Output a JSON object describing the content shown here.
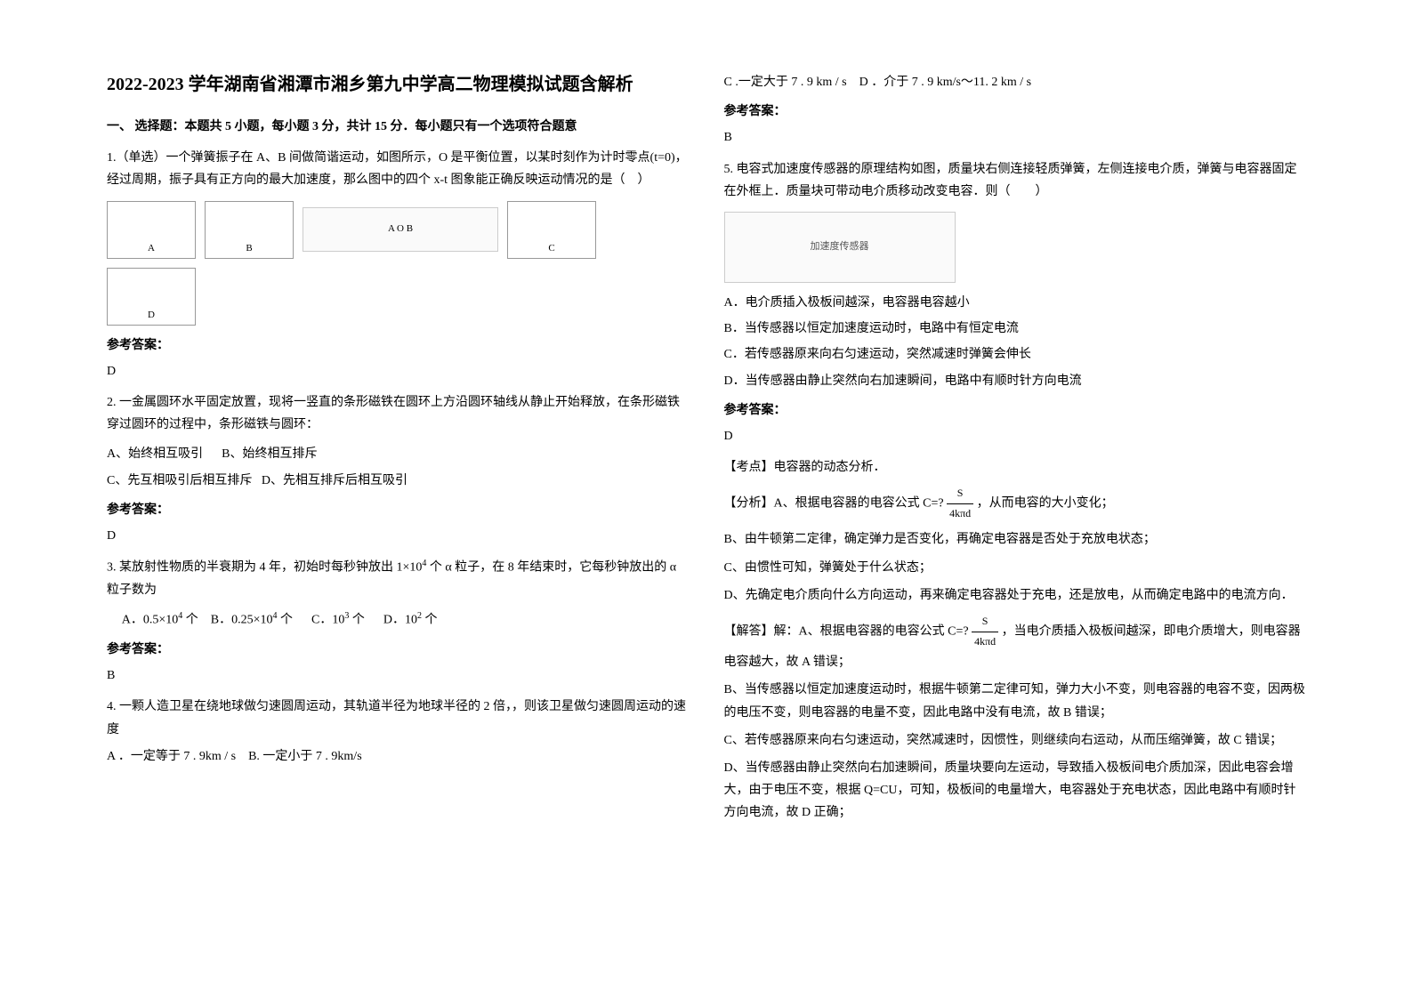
{
  "title": "2022-2023 学年湖南省湘潭市湘乡第九中学高二物理模拟试题含解析",
  "section1_heading": "一、 选择题：本题共 5 小题，每小题 3 分，共计 15 分．每小题只有一个选项符合题意",
  "q1": {
    "text": "1.（单选）一个弹簧振子在 A、B 间做简谐运动，如图所示，O 是平衡位置，以某时刻作为计时零点(t=0)，经过周期，振子具有正方向的最大加速度，那么图中的四个 x-t 图象能正确反映运动情况的是（　）",
    "graph_labels": [
      "A",
      "B",
      "C",
      "D"
    ],
    "spring_labels": "A   O   B",
    "answer_label": "参考答案：",
    "answer": "D"
  },
  "q2": {
    "text": "2. 一金属圆环水平固定放置，现将一竖直的条形磁铁在圆环上方沿圆环轴线从静止开始释放，在条形磁铁穿过圆环的过程中，条形磁铁与圆环：",
    "optA": "A、始终相互吸引",
    "optB": "B、始终相互排斥",
    "optC": "C、先互相吸引后相互排斥",
    "optD": "D、先相互排斥后相互吸引",
    "answer_label": "参考答案：",
    "answer": "D"
  },
  "q3": {
    "text_part1": "3. 某放射性物质的半衰期为 4 年，初始时每秒钟放出 1×10",
    "text_exp1": "4",
    "text_part2": " 个 α 粒子，在 8 年结束时，它每秒钟放出的 α 粒子数为",
    "optA_pre": "A．0.5×10",
    "optA_exp": "4",
    "optA_post": " 个",
    "optB_pre": "B．0.25×10",
    "optB_exp": "4",
    "optB_post": " 个",
    "optC_pre": "C．10",
    "optC_exp": "3",
    "optC_post": " 个",
    "optD_pre": "D．10",
    "optD_exp": "2",
    "optD_post": " 个",
    "answer_label": "参考答案：",
    "answer": "B"
  },
  "q4": {
    "text": "4. 一颗人造卫星在绕地球做匀速圆周运动，其轨道半径为地球半径的 2 倍，，则该卫星做匀速圆周运动的速度",
    "optA": "A ．一定等于 7 . 9km / s",
    "optB": "B. 一定小于 7 . 9km/s",
    "optC": "C .一定大于 7 . 9 km / s",
    "optD": "D ．介于 7 . 9 km/s～11. 2 km / s",
    "answer_label": "参考答案：",
    "answer": "B"
  },
  "q5": {
    "text": "5. 电容式加速度传感器的原理结构如图，质量块右侧连接轻质弹簧，左侧连接电介质，弹簧与电容器固定在外框上．质量块可带动电介质移动改变电容．则（　　）",
    "diagram_label": "加速度传感器",
    "optA": "A．电介质插入极板间越深，电容器电容越小",
    "optB": "B．当传感器以恒定加速度运动时，电路中有恒定电流",
    "optC": "C．若传感器原来向右匀速运动，突然减速时弹簧会伸长",
    "optD": "D．当传感器由静止突然向右加速瞬间，电路中有顺时针方向电流",
    "answer_label": "参考答案：",
    "answer": "D",
    "analysis_title": "【考点】电容器的动态分析．",
    "analysis_intro_pre": "【分析】A、根据电容器的电容公式 C=?",
    "frac_num": "S",
    "frac_den": "4kπd",
    "analysis_intro_post": " ，从而电容的大小变化；",
    "analysis_B": "B、由牛顿第二定律，确定弹力是否变化，再确定电容器是否处于充放电状态；",
    "analysis_C": "C、由惯性可知，弹簧处于什么状态；",
    "analysis_D": "D、先确定电介质向什么方向运动，再来确定电容器处于充电，还是放电，从而确定电路中的电流方向．",
    "solution_A_pre": "【解答】解：A、根据电容器的电容公式 C=?",
    "solution_A_post": " ，当电介质插入极板间越深，即电介质增大，则电容器电容越大，故 A 错误；",
    "solution_B": "B、当传感器以恒定加速度运动时，根据牛顿第二定律可知，弹力大小不变，则电容器的电容不变，因两极的电压不变，则电容器的电量不变，因此电路中没有电流，故 B 错误；",
    "solution_C": "C、若传感器原来向右匀速运动，突然减速时，因惯性，则继续向右运动，从而压缩弹簧，故 C 错误；",
    "solution_D": "D、当传感器由静止突然向右加速瞬间，质量块要向左运动，导致插入极板间电介质加深，因此电容会增大，由于电压不变，根据 Q=CU，可知，极板间的电量增大，电容器处于充电状态，因此电路中有顺时针方向电流，故 D 正确；"
  }
}
